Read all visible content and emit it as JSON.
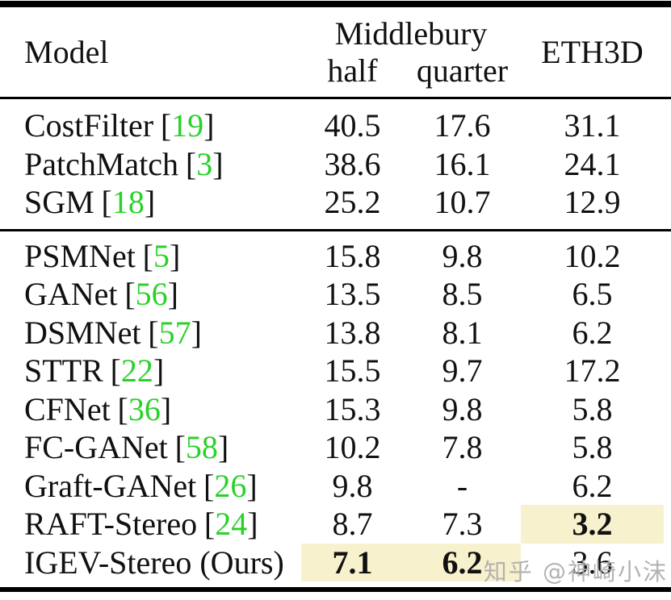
{
  "header": {
    "model": "Model",
    "group": "Middlebury",
    "half": "half",
    "quarter": "quarter",
    "eth3d": "ETH3D"
  },
  "cite_brackets": {
    "open": "[",
    "close": "]"
  },
  "groups": [
    {
      "rows": [
        {
          "name": "CostFilter",
          "cite": "19",
          "half": {
            "value": "40.5",
            "bold": false,
            "highlight": false
          },
          "quarter": {
            "value": "17.6",
            "bold": false,
            "highlight": false
          },
          "eth3d": {
            "value": "31.1",
            "bold": false,
            "highlight": false
          }
        },
        {
          "name": "PatchMatch",
          "cite": "3",
          "half": {
            "value": "38.6",
            "bold": false,
            "highlight": false
          },
          "quarter": {
            "value": "16.1",
            "bold": false,
            "highlight": false
          },
          "eth3d": {
            "value": "24.1",
            "bold": false,
            "highlight": false
          }
        },
        {
          "name": "SGM",
          "cite": "18",
          "half": {
            "value": "25.2",
            "bold": false,
            "highlight": false
          },
          "quarter": {
            "value": "10.7",
            "bold": false,
            "highlight": false
          },
          "eth3d": {
            "value": "12.9",
            "bold": false,
            "highlight": false
          }
        }
      ]
    },
    {
      "rows": [
        {
          "name": "PSMNet",
          "cite": "5",
          "half": {
            "value": "15.8",
            "bold": false,
            "highlight": false
          },
          "quarter": {
            "value": "9.8",
            "bold": false,
            "highlight": false
          },
          "eth3d": {
            "value": "10.2",
            "bold": false,
            "highlight": false
          }
        },
        {
          "name": "GANet",
          "cite": "56",
          "half": {
            "value": "13.5",
            "bold": false,
            "highlight": false
          },
          "quarter": {
            "value": "8.5",
            "bold": false,
            "highlight": false
          },
          "eth3d": {
            "value": "6.5",
            "bold": false,
            "highlight": false
          }
        },
        {
          "name": "DSMNet",
          "cite": "57",
          "half": {
            "value": "13.8",
            "bold": false,
            "highlight": false
          },
          "quarter": {
            "value": "8.1",
            "bold": false,
            "highlight": false
          },
          "eth3d": {
            "value": "6.2",
            "bold": false,
            "highlight": false
          }
        },
        {
          "name": "STTR",
          "cite": "22",
          "half": {
            "value": "15.5",
            "bold": false,
            "highlight": false
          },
          "quarter": {
            "value": "9.7",
            "bold": false,
            "highlight": false
          },
          "eth3d": {
            "value": "17.2",
            "bold": false,
            "highlight": false
          }
        },
        {
          "name": "CFNet",
          "cite": "36",
          "half": {
            "value": "15.3",
            "bold": false,
            "highlight": false
          },
          "quarter": {
            "value": "9.8",
            "bold": false,
            "highlight": false
          },
          "eth3d": {
            "value": "5.8",
            "bold": false,
            "highlight": false
          }
        },
        {
          "name": "FC-GANet",
          "cite": "58",
          "half": {
            "value": "10.2",
            "bold": false,
            "highlight": false
          },
          "quarter": {
            "value": "7.8",
            "bold": false,
            "highlight": false
          },
          "eth3d": {
            "value": "5.8",
            "bold": false,
            "highlight": false
          }
        },
        {
          "name": "Graft-GANet",
          "cite": "26",
          "half": {
            "value": "9.8",
            "bold": false,
            "highlight": false
          },
          "quarter": {
            "value": "-",
            "bold": false,
            "highlight": false
          },
          "eth3d": {
            "value": "6.2",
            "bold": false,
            "highlight": false
          }
        },
        {
          "name": "RAFT-Stereo",
          "cite": "24",
          "half": {
            "value": "8.7",
            "bold": false,
            "highlight": false
          },
          "quarter": {
            "value": "7.3",
            "bold": false,
            "highlight": false
          },
          "eth3d": {
            "value": "3.2",
            "bold": true,
            "highlight": true
          }
        },
        {
          "name": "IGEV-Stereo (Ours)",
          "cite": null,
          "half": {
            "value": "7.1",
            "bold": true,
            "highlight": true
          },
          "quarter": {
            "value": "6.2",
            "bold": true,
            "highlight": true
          },
          "eth3d": {
            "value": "3.6",
            "bold": false,
            "highlight": false
          }
        }
      ]
    }
  ],
  "watermark": "知乎 @神崎小沫",
  "colors": {
    "citation_green": "#28d228",
    "highlight_yellow": "#f8f1cd",
    "rule_black": "#000000",
    "watermark_gray": "#acacac"
  }
}
